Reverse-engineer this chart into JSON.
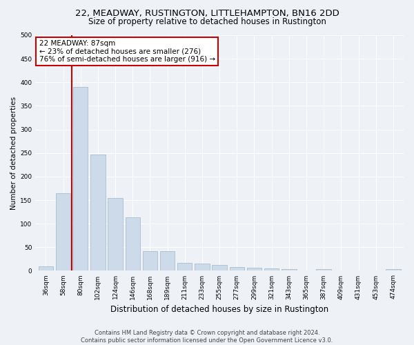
{
  "title1": "22, MEADWAY, RUSTINGTON, LITTLEHAMPTON, BN16 2DD",
  "title2": "Size of property relative to detached houses in Rustington",
  "xlabel": "Distribution of detached houses by size in Rustington",
  "ylabel": "Number of detached properties",
  "categories": [
    "36sqm",
    "58sqm",
    "80sqm",
    "102sqm",
    "124sqm",
    "146sqm",
    "168sqm",
    "189sqm",
    "211sqm",
    "233sqm",
    "255sqm",
    "277sqm",
    "299sqm",
    "321sqm",
    "343sqm",
    "365sqm",
    "387sqm",
    "409sqm",
    "431sqm",
    "453sqm",
    "474sqm"
  ],
  "values": [
    10,
    165,
    390,
    247,
    155,
    113,
    42,
    42,
    17,
    15,
    13,
    8,
    7,
    5,
    3,
    0,
    3,
    0,
    0,
    0,
    4
  ],
  "bar_color": "#cddaea",
  "bar_edge_color": "#a8bece",
  "annotation_line1": "22 MEADWAY: 87sqm",
  "annotation_line2": "← 23% of detached houses are smaller (276)",
  "annotation_line3": "76% of semi-detached houses are larger (916) →",
  "annotation_box_color": "#ffffff",
  "annotation_box_edge": "#cc0000",
  "redline_color": "#cc0000",
  "footer1": "Contains HM Land Registry data © Crown copyright and database right 2024.",
  "footer2": "Contains public sector information licensed under the Open Government Licence v3.0.",
  "ylim": [
    0,
    500
  ],
  "yticks": [
    0,
    50,
    100,
    150,
    200,
    250,
    300,
    350,
    400,
    450,
    500
  ],
  "background_color": "#eef2f7",
  "grid_color": "#ffffff",
  "title1_fontsize": 9.5,
  "title2_fontsize": 8.5,
  "xlabel_fontsize": 8.5,
  "ylabel_fontsize": 7.5,
  "tick_fontsize": 6.5,
  "footer_fontsize": 6.0,
  "ann_fontsize": 7.5
}
